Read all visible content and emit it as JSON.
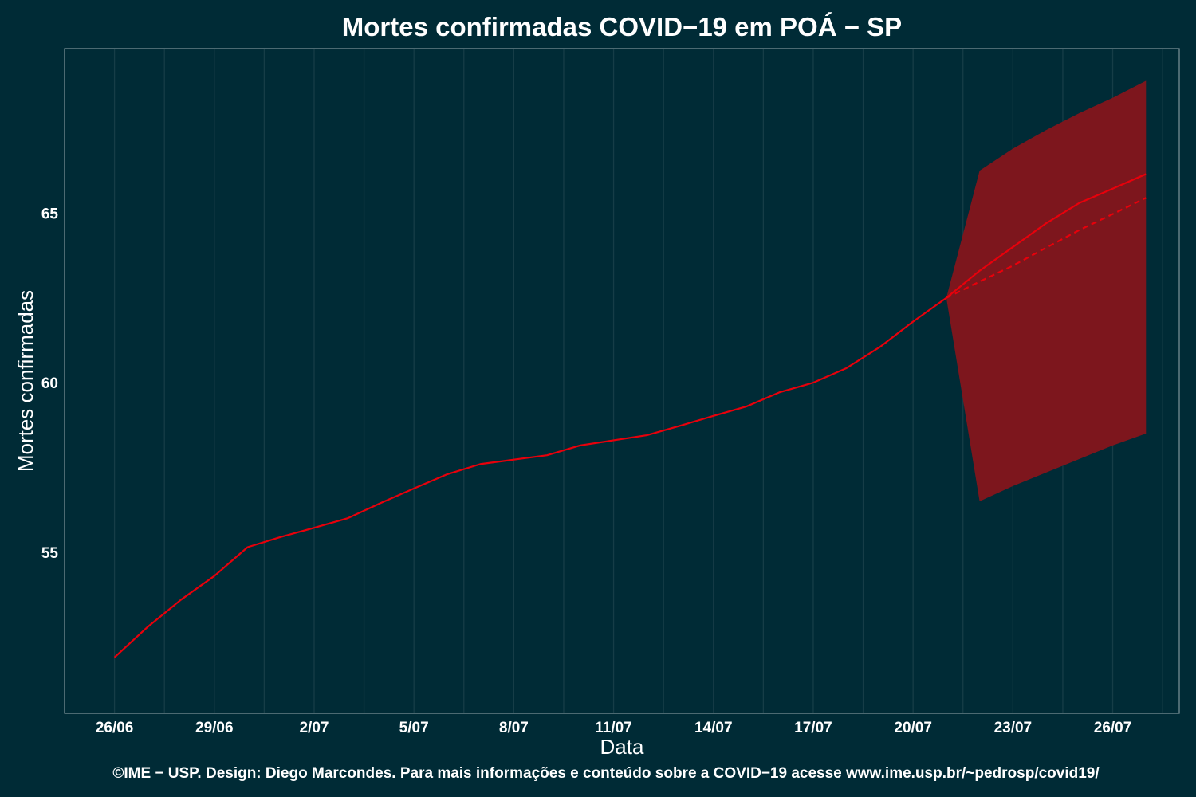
{
  "chart_data": {
    "type": "line",
    "title": "Mortes confirmadas COVID−19 em POÁ − SP",
    "xlabel": "Data",
    "ylabel": "Mortes confirmadas",
    "caption": "©IME − USP. Design: Diego Marcondes. Para mais informações e conteúdo sobre a COVID−19 acesse www.ime.usp.br/~pedrosp/covid19/",
    "x_tick_labels": [
      "26/06",
      "29/06",
      "2/07",
      "5/07",
      "8/07",
      "11/07",
      "14/07",
      "17/07",
      "20/07",
      "23/07",
      "26/07"
    ],
    "x_tick_days": [
      0,
      3,
      6,
      9,
      12,
      15,
      18,
      21,
      24,
      27,
      30
    ],
    "xlim_days": [
      -1.5,
      32
    ],
    "y_ticks": [
      55,
      60,
      65
    ],
    "ylim": [
      50.25,
      69.85
    ],
    "grid": true,
    "legend": "none",
    "colors": {
      "background": "#002b36",
      "line": "#e8000b",
      "band": "#7d161d",
      "frame": "#7f949a",
      "grid": "#163d47"
    },
    "series": [
      {
        "role": "observed",
        "style": "solid",
        "x_days": [
          0,
          1,
          2,
          3,
          4,
          5,
          6,
          7,
          8,
          9,
          10,
          11,
          12,
          13,
          14,
          15,
          16,
          17,
          18,
          19,
          20,
          21,
          22,
          23,
          24,
          25
        ],
        "values": [
          51.9,
          52.8,
          53.6,
          54.3,
          55.15,
          55.45,
          55.72,
          56.0,
          56.45,
          56.88,
          57.3,
          57.6,
          57.73,
          57.86,
          58.15,
          58.3,
          58.45,
          58.73,
          59.02,
          59.3,
          59.72,
          60.0,
          60.43,
          61.05,
          61.8,
          62.5
        ]
      },
      {
        "role": "forecast",
        "style": "solid",
        "x_days": [
          25,
          26,
          27,
          28,
          29,
          30,
          31
        ],
        "values": [
          62.5,
          63.3,
          64.0,
          64.7,
          65.3,
          65.72,
          66.15
        ]
      },
      {
        "role": "forecast",
        "style": "dashed",
        "x_days": [
          25,
          26,
          27,
          28,
          29,
          30,
          31
        ],
        "values": [
          62.5,
          62.98,
          63.45,
          63.98,
          64.5,
          64.97,
          65.45
        ]
      }
    ],
    "band": {
      "x_days": [
        25,
        26,
        27,
        28,
        29,
        30,
        31
      ],
      "lower": [
        62.5,
        56.5,
        56.95,
        57.35,
        57.75,
        58.15,
        58.5
      ],
      "upper": [
        62.5,
        66.25,
        66.9,
        67.45,
        67.95,
        68.4,
        68.9
      ]
    }
  }
}
